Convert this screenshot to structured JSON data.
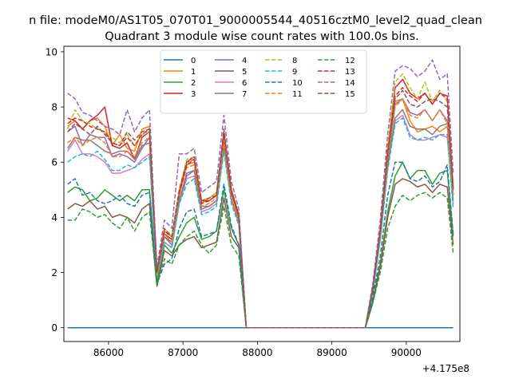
{
  "suptitle": "n file: modeM0/AS1T05_070T01_9000005544_40516cztM0_level2_quad_clean",
  "chart_data": {
    "type": "line",
    "title": "Quadrant 3 module wise count rates with 100.0s bins.",
    "xlabel": "",
    "ylabel": "",
    "x_offset_label": "+4.175e8",
    "xlim": [
      85400,
      90720
    ],
    "ylim": [
      -0.5,
      10.2
    ],
    "xticks": [
      86000,
      87000,
      88000,
      89000,
      90000
    ],
    "xtick_labels": [
      "86000",
      "87000",
      "88000",
      "89000",
      "90000"
    ],
    "yticks": [
      0,
      2,
      4,
      6,
      8,
      10
    ],
    "ytick_labels": [
      "0",
      "2",
      "4",
      "6",
      "8",
      "10"
    ],
    "grid": false,
    "legend": "upper center, 4 columns",
    "x": [
      85450,
      85550,
      85650,
      85750,
      85850,
      85950,
      86050,
      86150,
      86250,
      86350,
      86450,
      86550,
      86650,
      86750,
      86850,
      86950,
      87050,
      87150,
      87250,
      87350,
      87450,
      87550,
      87650,
      87750,
      87850,
      87950,
      88050,
      88150,
      88250,
      88350,
      88450,
      88550,
      88650,
      88750,
      88850,
      88950,
      89050,
      89150,
      89250,
      89350,
      89450,
      89550,
      89650,
      89750,
      89850,
      89950,
      90050,
      90150,
      90250,
      90350,
      90450,
      90550,
      90630
    ],
    "series": [
      {
        "name": "0",
        "color": "#1f77b4",
        "dash": "solid",
        "values": [
          0,
          0,
          0,
          0,
          0,
          0,
          0,
          0,
          0,
          0,
          0,
          0,
          0,
          0,
          0,
          0,
          0,
          0,
          0,
          0,
          0,
          0,
          0,
          0,
          0,
          0,
          0,
          0,
          0,
          0,
          0,
          0,
          0,
          0,
          0,
          0,
          0,
          0,
          0,
          0,
          0,
          0,
          0,
          0,
          0,
          0,
          0,
          0,
          0,
          0,
          0,
          0,
          0
        ]
      },
      {
        "name": "1",
        "color": "#ff7f0e",
        "dash": "solid",
        "values": [
          7.3,
          7.5,
          7.2,
          7.5,
          7.6,
          7.3,
          6.6,
          7.0,
          6.5,
          6.4,
          7.2,
          7.3,
          2.0,
          3.5,
          3.3,
          4.8,
          5.9,
          6.0,
          4.5,
          4.7,
          4.9,
          6.9,
          4.9,
          4.0,
          0,
          0,
          0,
          0,
          0,
          0,
          0,
          0,
          0,
          0,
          0,
          0,
          0,
          0,
          0,
          0,
          0,
          1.4,
          3.4,
          6.2,
          8.2,
          8.3,
          7.5,
          7.1,
          7.2,
          7.3,
          7.1,
          7.3,
          5.0
        ]
      },
      {
        "name": "2",
        "color": "#2ca02c",
        "dash": "solid",
        "values": [
          4.9,
          5.1,
          5.0,
          4.6,
          4.7,
          5.0,
          4.8,
          4.6,
          4.8,
          4.6,
          5.0,
          5.0,
          1.6,
          3.0,
          2.7,
          3.3,
          3.8,
          4.0,
          3.2,
          3.3,
          3.5,
          5.0,
          3.6,
          3.0,
          0,
          0,
          0,
          0,
          0,
          0,
          0,
          0,
          0,
          0,
          0,
          0,
          0,
          0,
          0,
          0,
          0,
          1.0,
          2.3,
          4.2,
          5.5,
          6.0,
          5.4,
          5.7,
          5.7,
          5.2,
          5.6,
          5.7,
          3.3
        ]
      },
      {
        "name": "3",
        "color": "#d62728",
        "dash": "solid",
        "values": [
          7.6,
          7.5,
          7.2,
          7.5,
          7.7,
          8.0,
          6.6,
          6.5,
          6.7,
          6.1,
          6.9,
          7.1,
          2.1,
          3.4,
          3.2,
          4.9,
          6.0,
          6.2,
          4.6,
          4.6,
          4.8,
          7.1,
          5.0,
          4.1,
          0,
          0,
          0,
          0,
          0,
          0,
          0,
          0,
          0,
          0,
          0,
          0,
          0,
          0,
          0,
          0,
          0,
          1.5,
          3.6,
          6.5,
          8.7,
          9.0,
          8.5,
          8.3,
          8.5,
          8.1,
          8.5,
          8.4,
          5.1
        ]
      },
      {
        "name": "4",
        "color": "#9467bd",
        "dash": "solid",
        "values": [
          7.1,
          7.3,
          6.6,
          7.0,
          6.9,
          6.9,
          6.2,
          6.3,
          6.2,
          6.0,
          6.5,
          6.9,
          1.9,
          3.3,
          3.0,
          4.6,
          5.6,
          5.7,
          4.4,
          4.4,
          4.6,
          6.7,
          4.7,
          3.8,
          0,
          0,
          0,
          0,
          0,
          0,
          0,
          0,
          0,
          0,
          0,
          0,
          0,
          0,
          0,
          0,
          0,
          1.4,
          3.4,
          6.0,
          8.1,
          8.3,
          7.8,
          7.7,
          7.9,
          7.5,
          7.9,
          7.5,
          4.8
        ]
      },
      {
        "name": "5",
        "color": "#8c564b",
        "dash": "solid",
        "values": [
          4.3,
          4.5,
          4.4,
          4.6,
          4.3,
          4.4,
          4.0,
          4.1,
          4.0,
          3.8,
          4.3,
          4.5,
          1.5,
          2.8,
          2.6,
          3.0,
          3.2,
          3.3,
          2.9,
          3.0,
          3.1,
          4.7,
          3.3,
          2.9,
          0,
          0,
          0,
          0,
          0,
          0,
          0,
          0,
          0,
          0,
          0,
          0,
          0,
          0,
          0,
          0,
          0,
          0.9,
          2.2,
          4.0,
          5.2,
          5.4,
          5.3,
          5.1,
          5.2,
          4.9,
          5.2,
          5.1,
          3.0
        ]
      },
      {
        "name": "6",
        "color": "#e377c2",
        "dash": "solid",
        "values": [
          6.4,
          6.8,
          6.3,
          6.3,
          6.2,
          6.0,
          5.6,
          5.6,
          5.7,
          5.8,
          6.1,
          6.3,
          1.8,
          3.1,
          2.9,
          4.5,
          5.4,
          5.5,
          4.2,
          4.3,
          4.5,
          6.5,
          4.6,
          3.8,
          0,
          0,
          0,
          0,
          0,
          0,
          0,
          0,
          0,
          0,
          0,
          0,
          0,
          0,
          0,
          0,
          0,
          1.3,
          3.2,
          5.8,
          7.5,
          7.7,
          7.0,
          6.8,
          6.8,
          6.9,
          7.0,
          6.9,
          4.5
        ]
      },
      {
        "name": "7",
        "color": "#7f7f7f",
        "dash": "solid",
        "values": [
          6.5,
          6.9,
          6.8,
          6.8,
          6.6,
          6.4,
          6.3,
          6.4,
          6.4,
          6.1,
          6.6,
          6.7,
          1.9,
          3.3,
          3.1,
          4.6,
          5.5,
          5.7,
          4.3,
          4.4,
          4.6,
          6.6,
          4.7,
          3.8,
          0,
          0,
          0,
          0,
          0,
          0,
          0,
          0,
          0,
          0,
          0,
          0,
          0,
          0,
          0,
          0,
          0,
          1.3,
          3.3,
          5.9,
          7.6,
          7.9,
          7.3,
          7.2,
          7.2,
          7.0,
          7.3,
          7.4,
          4.6
        ]
      },
      {
        "name": "8",
        "color": "#bcbd22",
        "dash": "dashed",
        "values": [
          7.2,
          7.9,
          7.5,
          7.4,
          7.2,
          7.1,
          6.9,
          6.7,
          7.0,
          6.6,
          7.0,
          7.1,
          2.1,
          3.6,
          3.3,
          5.0,
          6.1,
          6.2,
          4.6,
          4.7,
          4.9,
          7.0,
          4.9,
          4.0,
          0,
          0,
          0,
          0,
          0,
          0,
          0,
          0,
          0,
          0,
          0,
          0,
          0,
          0,
          0,
          0,
          0,
          1.5,
          3.6,
          6.5,
          8.9,
          9.2,
          8.7,
          8.3,
          8.9,
          8.2,
          8.6,
          8.2,
          5.2
        ]
      },
      {
        "name": "9",
        "color": "#17becf",
        "dash": "dashed",
        "values": [
          6.0,
          6.2,
          6.3,
          6.2,
          6.4,
          6.1,
          5.7,
          5.7,
          5.9,
          5.8,
          6.0,
          6.2,
          1.8,
          3.1,
          2.9,
          4.5,
          5.2,
          5.4,
          4.1,
          4.2,
          4.4,
          6.4,
          4.5,
          3.7,
          0,
          0,
          0,
          0,
          0,
          0,
          0,
          0,
          0,
          0,
          0,
          0,
          0,
          0,
          0,
          0,
          0,
          1.3,
          3.2,
          5.7,
          7.4,
          7.6,
          6.9,
          6.8,
          6.9,
          6.8,
          7.0,
          7.0,
          4.3
        ]
      },
      {
        "name": "10",
        "color": "#1f77b4",
        "dash": "dashed",
        "values": [
          5.2,
          5.4,
          4.8,
          4.9,
          4.6,
          4.5,
          4.6,
          4.8,
          4.5,
          4.4,
          4.8,
          4.9,
          1.6,
          2.3,
          2.5,
          3.6,
          4.2,
          4.3,
          3.3,
          3.4,
          3.5,
          5.2,
          3.7,
          3.0,
          0,
          0,
          0,
          0,
          0,
          0,
          0,
          0,
          0,
          0,
          0,
          0,
          0,
          0,
          0,
          0,
          0,
          1.1,
          2.6,
          4.8,
          6.0,
          6.0,
          5.4,
          5.3,
          5.5,
          5.1,
          5.3,
          5.9,
          3.4
        ]
      },
      {
        "name": "11",
        "color": "#ff7f0e",
        "dash": "dashed",
        "values": [
          6.7,
          6.9,
          6.6,
          6.8,
          6.9,
          6.7,
          6.2,
          6.2,
          6.4,
          6.2,
          6.7,
          6.9,
          1.9,
          3.4,
          3.1,
          4.8,
          5.8,
          5.9,
          4.4,
          4.5,
          4.7,
          6.8,
          4.7,
          3.9,
          0,
          0,
          0,
          0,
          0,
          0,
          0,
          0,
          0,
          0,
          0,
          0,
          0,
          0,
          0,
          0,
          0,
          1.4,
          3.4,
          6.1,
          8.0,
          8.3,
          7.7,
          7.6,
          7.9,
          7.5,
          7.9,
          7.4,
          4.8
        ]
      },
      {
        "name": "12",
        "color": "#2ca02c",
        "dash": "dashed",
        "values": [
          3.9,
          3.9,
          4.3,
          4.2,
          4.0,
          4.1,
          3.8,
          3.6,
          4.0,
          3.5,
          4.0,
          4.2,
          1.5,
          2.5,
          2.3,
          3.0,
          3.3,
          3.5,
          3.0,
          2.7,
          3.0,
          4.4,
          3.0,
          2.6,
          0,
          0,
          0,
          0,
          0,
          0,
          0,
          0,
          0,
          0,
          0,
          0,
          0,
          0,
          0,
          0,
          0,
          0.9,
          2.0,
          3.6,
          4.4,
          4.8,
          4.6,
          4.8,
          4.9,
          4.7,
          4.9,
          4.7,
          2.7
        ]
      },
      {
        "name": "13",
        "color": "#d62728",
        "dash": "dashed",
        "values": [
          7.4,
          7.6,
          7.5,
          7.3,
          7.2,
          7.1,
          6.7,
          6.6,
          6.9,
          6.6,
          7.0,
          7.2,
          2.0,
          3.5,
          3.3,
          4.9,
          5.9,
          6.1,
          4.5,
          4.6,
          4.8,
          7.0,
          4.9,
          4.0,
          0,
          0,
          0,
          0,
          0,
          0,
          0,
          0,
          0,
          0,
          0,
          0,
          0,
          0,
          0,
          0,
          0,
          1.4,
          3.5,
          6.3,
          8.4,
          8.7,
          8.4,
          8.2,
          8.5,
          8.1,
          8.5,
          8.3,
          5.0
        ]
      },
      {
        "name": "14",
        "color": "#9467bd",
        "dash": "dashed",
        "values": [
          8.5,
          8.3,
          7.8,
          7.7,
          7.5,
          7.3,
          7.2,
          7.0,
          7.9,
          7.1,
          7.6,
          7.9,
          2.2,
          3.9,
          3.6,
          6.3,
          6.3,
          6.5,
          4.9,
          5.1,
          5.3,
          7.7,
          5.3,
          4.3,
          0,
          0,
          0,
          0,
          0,
          0,
          0,
          0,
          0,
          0,
          0,
          0,
          0,
          0,
          0,
          0,
          0,
          1.6,
          3.9,
          7.0,
          9.3,
          9.5,
          9.4,
          9.1,
          9.3,
          9.7,
          9.0,
          9.2,
          5.6
        ]
      },
      {
        "name": "15",
        "color": "#8c564b",
        "dash": "dashed",
        "values": [
          7.1,
          7.4,
          7.2,
          7.0,
          7.3,
          7.0,
          6.7,
          6.6,
          7.1,
          6.8,
          7.1,
          7.2,
          2.0,
          3.6,
          3.3,
          5.0,
          6.0,
          6.1,
          4.6,
          4.7,
          4.8,
          7.2,
          4.9,
          4.0,
          0,
          0,
          0,
          0,
          0,
          0,
          0,
          0,
          0,
          0,
          0,
          0,
          0,
          0,
          0,
          0,
          0,
          1.4,
          3.5,
          6.4,
          8.3,
          8.6,
          8.1,
          8.0,
          8.2,
          8.3,
          8.2,
          8.0,
          5.0
        ]
      }
    ]
  }
}
